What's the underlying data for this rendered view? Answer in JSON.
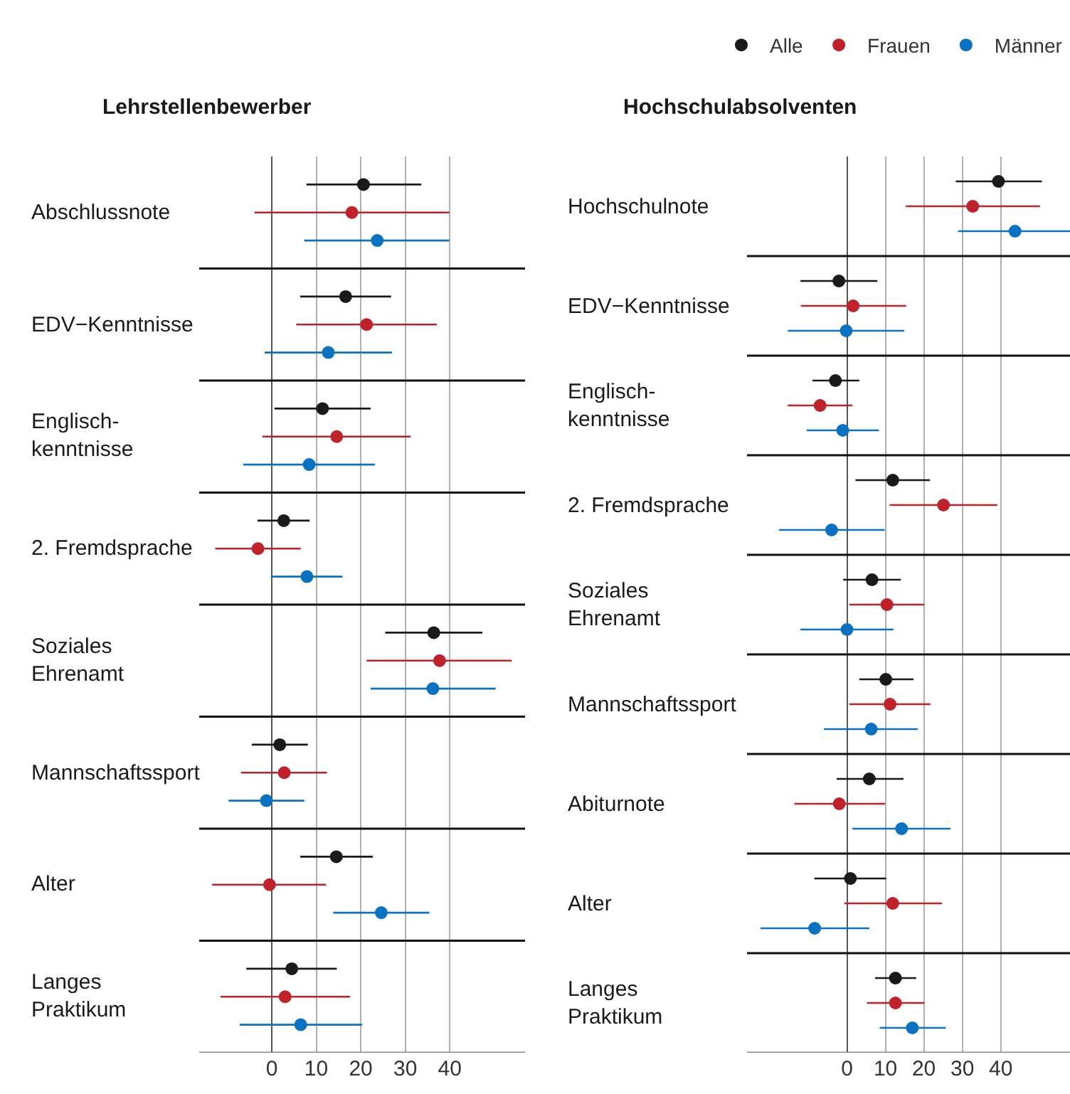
{
  "chart_data": [
    {
      "type": "scatter",
      "orientation": "horizontal",
      "title": "Lehrstellenbewerber",
      "marker": "circle",
      "grid": "x",
      "legend": "top right",
      "categories": [
        "Abschlussnote",
        "EDV−Kenntnisse",
        "Englisch-\nkenntnisse",
        "2. Fremdsprache",
        "Soziales\nEhrenamt",
        "Mannschaftssport",
        "Alter",
        "Langes\nPraktikum"
      ],
      "xlim": [
        -16.3,
        56.9
      ],
      "xticks": [
        0,
        10,
        20,
        30,
        40
      ],
      "series": [
        {
          "name": "Alle",
          "color": "#1a1a1a",
          "values": [
            20.6,
            16.6,
            11.4,
            2.7,
            36.4,
            1.8,
            14.5,
            4.5
          ],
          "errors": [
            [
              7.8,
              33.6
            ],
            [
              6.4,
              26.8
            ],
            [
              0.6,
              22.2
            ],
            [
              -3.2,
              8.5
            ],
            [
              25.5,
              47.3
            ],
            [
              -4.5,
              8.1
            ],
            [
              6.4,
              22.7
            ],
            [
              -5.7,
              14.6
            ]
          ]
        },
        {
          "name": "Frauen",
          "color": "#c0222b",
          "values": [
            18.0,
            21.3,
            14.6,
            -3.1,
            37.7,
            2.8,
            -0.5,
            3.0
          ],
          "errors": [
            [
              -3.9,
              39.9
            ],
            [
              5.5,
              37.1
            ],
            [
              -2.1,
              31.2
            ],
            [
              -12.7,
              6.5
            ],
            [
              21.3,
              53.9
            ],
            [
              -6.9,
              12.4
            ],
            [
              -13.4,
              12.2
            ],
            [
              -11.5,
              17.6
            ]
          ]
        },
        {
          "name": "Männer",
          "color": "#0a72c1",
          "values": [
            23.7,
            12.7,
            8.4,
            7.9,
            36.2,
            -1.2,
            24.6,
            6.5
          ],
          "errors": [
            [
              7.3,
              39.9
            ],
            [
              -1.6,
              27.0
            ],
            [
              -6.4,
              23.2
            ],
            [
              -0.2,
              15.9
            ],
            [
              22.2,
              50.3
            ],
            [
              -9.7,
              7.3
            ],
            [
              13.8,
              35.4
            ],
            [
              -7.2,
              20.3
            ]
          ]
        }
      ]
    },
    {
      "type": "scatter",
      "orientation": "horizontal",
      "title": "Hochschulabsolventen",
      "marker": "circle",
      "grid": "x",
      "categories": [
        "Hochschulnote",
        "EDV−Kenntnisse",
        "Englisch-\nkenntnisse",
        "2. Fremdsprache",
        "Soziales\nEhrenamt",
        "Mannschaftssport",
        "Abiturnote",
        "Alter",
        "Langes\nPraktikum"
      ],
      "xlim": [
        -26,
        58
      ],
      "xticks": [
        0,
        10,
        20,
        30,
        40
      ],
      "series": [
        {
          "color": "#1a1a1a",
          "values": [
            39.4,
            -2.1,
            -3.0,
            11.9,
            6.5,
            10.1,
            5.8,
            0.9,
            12.6
          ],
          "errors": [
            [
              28.3,
              50.7
            ],
            [
              -12.1,
              7.9
            ],
            [
              -9.0,
              3.2
            ],
            [
              2.2,
              21.6
            ],
            [
              -1.0,
              14.0
            ],
            [
              3.2,
              17.3
            ],
            [
              -2.7,
              14.7
            ],
            [
              -8.5,
              10.2
            ],
            [
              7.3,
              18.0
            ]
          ]
        },
        {
          "color": "#c0222b",
          "values": [
            32.7,
            1.6,
            -7.0,
            25.1,
            10.4,
            11.2,
            -2.0,
            11.9,
            12.6
          ],
          "errors": [
            [
              15.3,
              50.2
            ],
            [
              -12.0,
              15.4
            ],
            [
              -15.4,
              1.4
            ],
            [
              11.1,
              39.1
            ],
            [
              0.6,
              20.1
            ],
            [
              0.6,
              21.7
            ],
            [
              -13.7,
              9.9
            ],
            [
              -0.7,
              24.7
            ],
            [
              5.2,
              20.1
            ]
          ]
        },
        {
          "color": "#0a72c1",
          "values": [
            43.7,
            -0.2,
            -1.1,
            -4.0,
            0.0,
            6.3,
            14.2,
            -8.4,
            17.0
          ],
          "errors": [
            [
              28.9,
              58
            ],
            [
              -15.4,
              14.9
            ],
            [
              -10.5,
              8.3
            ],
            [
              -17.7,
              9.8
            ],
            [
              -12.1,
              12.1
            ],
            [
              -6.0,
              18.4
            ],
            [
              1.4,
              26.9
            ],
            [
              -22.5,
              5.8
            ],
            [
              8.5,
              25.7
            ]
          ]
        }
      ]
    }
  ]
}
